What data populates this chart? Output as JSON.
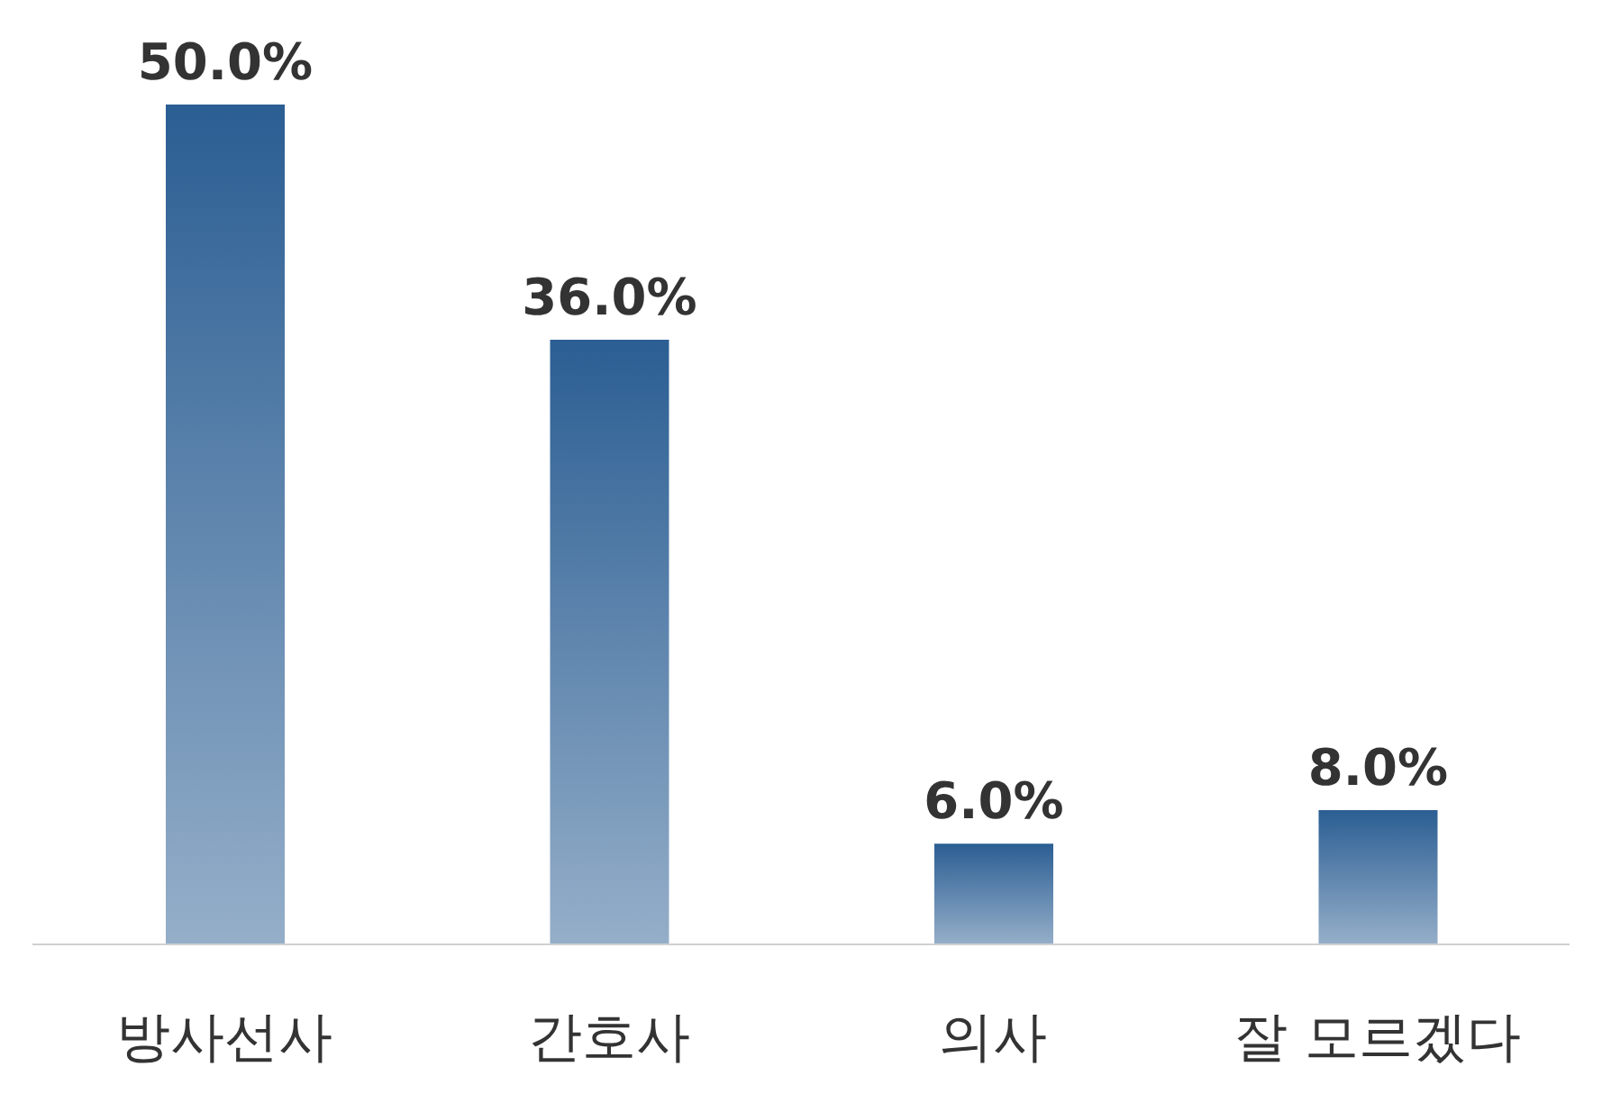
{
  "chart_data": {
    "type": "bar",
    "categories": [
      "방사선사",
      "간호사",
      "의사",
      "잘 모르겠다"
    ],
    "values": [
      50.0,
      36.0,
      6.0,
      8.0
    ],
    "value_labels": [
      "50.0%",
      "36.0%",
      "6.0%",
      "8.0%"
    ],
    "color": "#2b5e93",
    "grid": false,
    "legend": false
  }
}
